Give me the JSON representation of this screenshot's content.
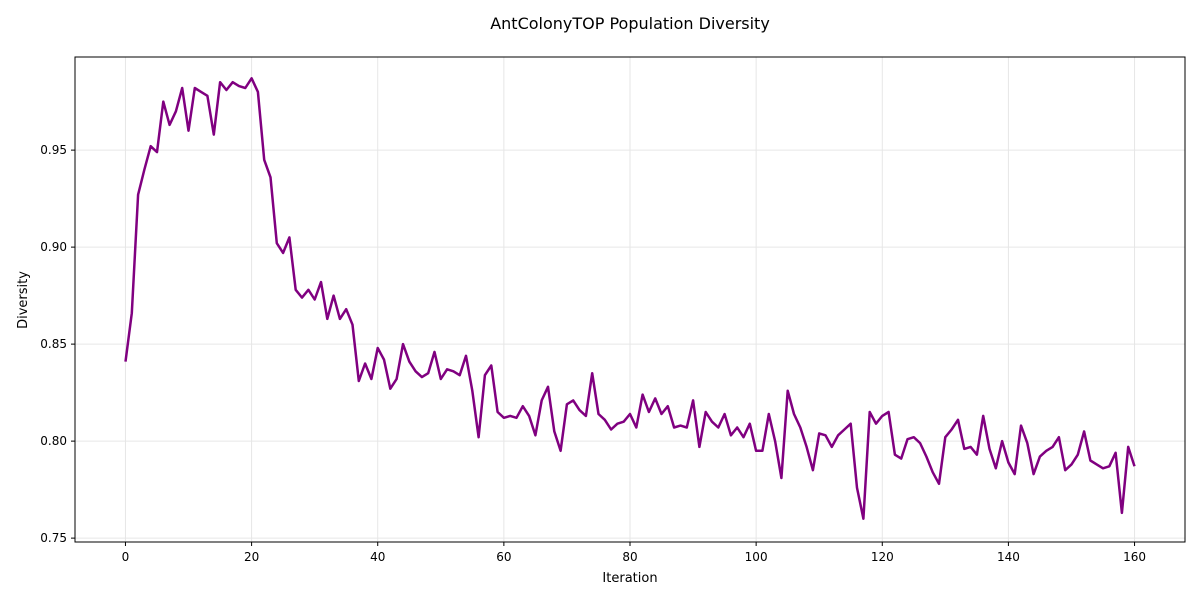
{
  "chart_data": {
    "type": "line",
    "title": "AntColonyTOP Population Diversity",
    "xlabel": "Iteration",
    "ylabel": "Diversity",
    "xlim": [
      -8,
      168
    ],
    "ylim": [
      0.748,
      0.998
    ],
    "xticks": [
      0,
      20,
      40,
      60,
      80,
      100,
      120,
      140,
      160
    ],
    "yticks": [
      0.75,
      0.8,
      0.85,
      0.9,
      0.95
    ],
    "ytick_labels": [
      "0.75",
      "0.80",
      "0.85",
      "0.90",
      "0.95"
    ],
    "grid": true,
    "line_color": "#800080",
    "series": [
      {
        "x": [
          0,
          1,
          2,
          3,
          4,
          5,
          6,
          7,
          8,
          9,
          10,
          11,
          12,
          13,
          14,
          15,
          16,
          17,
          18,
          19,
          20,
          21,
          22,
          23,
          24,
          25,
          26,
          27,
          28,
          29,
          30,
          31,
          32,
          33,
          34,
          35,
          36,
          37,
          38,
          39,
          40,
          41,
          42,
          43,
          44,
          45,
          46,
          47,
          48,
          49,
          50,
          51,
          52,
          53,
          54,
          55,
          56,
          57,
          58,
          59,
          60,
          61,
          62,
          63,
          64,
          65,
          66,
          67,
          68,
          69,
          70,
          71,
          72,
          73,
          74,
          75,
          76,
          77,
          78,
          79,
          80,
          81,
          82,
          83,
          84,
          85,
          86,
          87,
          88,
          89,
          90,
          91,
          92,
          93,
          94,
          95,
          96,
          97,
          98,
          99,
          100,
          101,
          102,
          103,
          104,
          105,
          106,
          107,
          108,
          109,
          110,
          111,
          112,
          113,
          114,
          115,
          116,
          117,
          118,
          119,
          120,
          121,
          122,
          123,
          124,
          125,
          126,
          127,
          128,
          129,
          130,
          131,
          132,
          133,
          134,
          135,
          136,
          137,
          138,
          139,
          140,
          141,
          142,
          143,
          144,
          145,
          146,
          147,
          148,
          149,
          150,
          151,
          152,
          153,
          154,
          155,
          156,
          157,
          158,
          159,
          160
        ],
        "values": [
          0.841,
          0.866,
          0.927,
          0.94,
          0.952,
          0.949,
          0.975,
          0.963,
          0.97,
          0.982,
          0.96,
          0.982,
          0.98,
          0.978,
          0.958,
          0.985,
          0.981,
          0.985,
          0.983,
          0.982,
          0.987,
          0.98,
          0.945,
          0.936,
          0.902,
          0.897,
          0.905,
          0.878,
          0.874,
          0.878,
          0.873,
          0.882,
          0.863,
          0.875,
          0.863,
          0.868,
          0.86,
          0.831,
          0.84,
          0.832,
          0.848,
          0.842,
          0.827,
          0.832,
          0.85,
          0.841,
          0.836,
          0.833,
          0.835,
          0.846,
          0.832,
          0.837,
          0.836,
          0.834,
          0.844,
          0.826,
          0.802,
          0.834,
          0.839,
          0.815,
          0.812,
          0.813,
          0.812,
          0.818,
          0.813,
          0.803,
          0.821,
          0.828,
          0.805,
          0.795,
          0.819,
          0.821,
          0.816,
          0.813,
          0.835,
          0.814,
          0.811,
          0.806,
          0.809,
          0.81,
          0.814,
          0.807,
          0.824,
          0.815,
          0.822,
          0.814,
          0.818,
          0.807,
          0.808,
          0.807,
          0.821,
          0.797,
          0.815,
          0.81,
          0.807,
          0.814,
          0.803,
          0.807,
          0.802,
          0.809,
          0.795,
          0.795,
          0.814,
          0.8,
          0.781,
          0.826,
          0.814,
          0.807,
          0.797,
          0.785,
          0.804,
          0.803,
          0.797,
          0.803,
          0.806,
          0.809,
          0.776,
          0.76,
          0.815,
          0.809,
          0.813,
          0.815,
          0.793,
          0.791,
          0.801,
          0.802,
          0.799,
          0.792,
          0.784,
          0.778,
          0.802,
          0.806,
          0.811,
          0.796,
          0.797,
          0.793,
          0.813,
          0.796,
          0.786,
          0.8,
          0.789,
          0.783,
          0.808,
          0.799,
          0.783,
          0.792,
          0.795,
          0.797,
          0.802,
          0.785,
          0.788,
          0.793,
          0.805,
          0.79,
          0.788,
          0.786,
          0.787,
          0.794,
          0.763,
          0.797,
          0.787
        ]
      }
    ]
  }
}
